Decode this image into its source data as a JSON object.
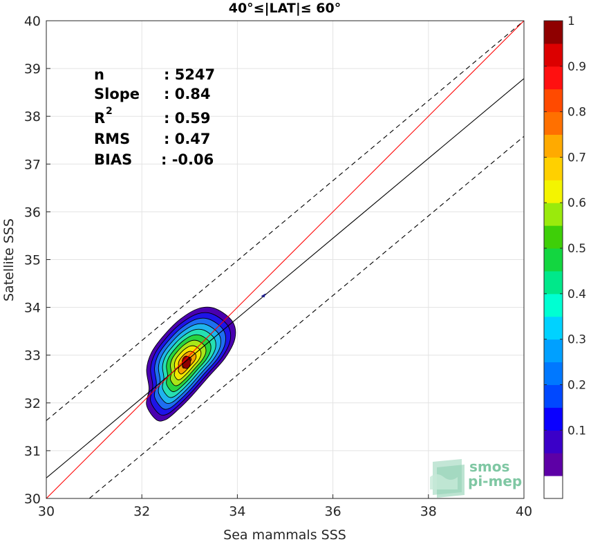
{
  "chart_data": {
    "type": "contour-scatter",
    "title": "40°≤|LAT|≤ 60°",
    "xlabel": "Sea mammals SSS",
    "ylabel": "Satellite SSS",
    "xlim": [
      30,
      40
    ],
    "ylim": [
      30,
      40
    ],
    "xticks": [
      "30",
      "32",
      "34",
      "36",
      "38",
      "40"
    ],
    "yticks": [
      "30",
      "31",
      "32",
      "33",
      "34",
      "35",
      "36",
      "37",
      "38",
      "39",
      "40"
    ],
    "grid": true,
    "stats": [
      {
        "label": "n",
        "value": ": 5247"
      },
      {
        "label": "Slope",
        "value": ": 0.84"
      },
      {
        "label": "R",
        "sup": "2",
        "value": ": 0.59"
      },
      {
        "label": "RMS",
        "value": ": 0.47"
      },
      {
        "label": "BIAS",
        "value": ": -0.06"
      }
    ],
    "reference_lines": {
      "identity": {
        "x": [
          30,
          40
        ],
        "y": [
          30,
          40
        ],
        "color": "#ff0000"
      },
      "fit": {
        "x": [
          30,
          40
        ],
        "y": [
          30.43,
          38.79
        ],
        "color": "#000000"
      },
      "upper_bound": {
        "x": [
          30,
          40
        ],
        "y": [
          31.63,
          40.0
        ],
        "color": "#000000",
        "dash": true
      },
      "lower_bound": {
        "x": [
          30.9,
          40
        ],
        "y": [
          30.0,
          37.58
        ],
        "color": "#000000",
        "dash": true
      }
    },
    "density": {
      "center": [
        32.93,
        32.85
      ],
      "outer_outline": [
        [
          32.1,
          31.95
        ],
        [
          32.15,
          32.3
        ],
        [
          32.1,
          32.7
        ],
        [
          32.2,
          33.05
        ],
        [
          32.45,
          33.4
        ],
        [
          32.8,
          33.75
        ],
        [
          33.2,
          33.98
        ],
        [
          33.55,
          33.97
        ],
        [
          33.9,
          33.7
        ],
        [
          33.95,
          33.35
        ],
        [
          33.75,
          32.95
        ],
        [
          33.4,
          32.55
        ],
        [
          33.05,
          32.15
        ],
        [
          32.75,
          31.85
        ],
        [
          32.5,
          31.65
        ],
        [
          32.3,
          31.65
        ]
      ],
      "levels": [
        0.05,
        0.15,
        0.25,
        0.35,
        0.45,
        0.55,
        0.65,
        0.75,
        0.85,
        0.95
      ],
      "level_colors": [
        "#4a00b0",
        "#1e14e8",
        "#1e6ef0",
        "#1fb4ee",
        "#26e0b2",
        "#28d43e",
        "#a9e618",
        "#f2e500",
        "#f6a200",
        "#e21010"
      ],
      "peak_value": 1.0
    },
    "outlier_point": {
      "x": 34.55,
      "y": 34.25
    },
    "colorbar": {
      "ticks": [
        "0.1",
        "0.2",
        "0.3",
        "0.4",
        "0.5",
        "0.6",
        "0.7",
        "0.8",
        "0.9",
        "1"
      ],
      "tick_values": [
        0.1,
        0.2,
        0.3,
        0.4,
        0.5,
        0.6,
        0.7,
        0.8,
        0.9,
        1.0
      ],
      "colors": [
        "#ffffff",
        "#5d00a6",
        "#3b00c8",
        "#0a00ff",
        "#0048ff",
        "#0078ff",
        "#00a0ff",
        "#00d2ff",
        "#00ffd2",
        "#00e88a",
        "#13d640",
        "#3ecf08",
        "#9aea0c",
        "#f4f400",
        "#ffd000",
        "#ffaa00",
        "#ff7000",
        "#ff4a00",
        "#ff1010",
        "#dc0000",
        "#8f0000"
      ]
    }
  },
  "logo": {
    "line1": "smos",
    "line2": "pi-mep"
  }
}
